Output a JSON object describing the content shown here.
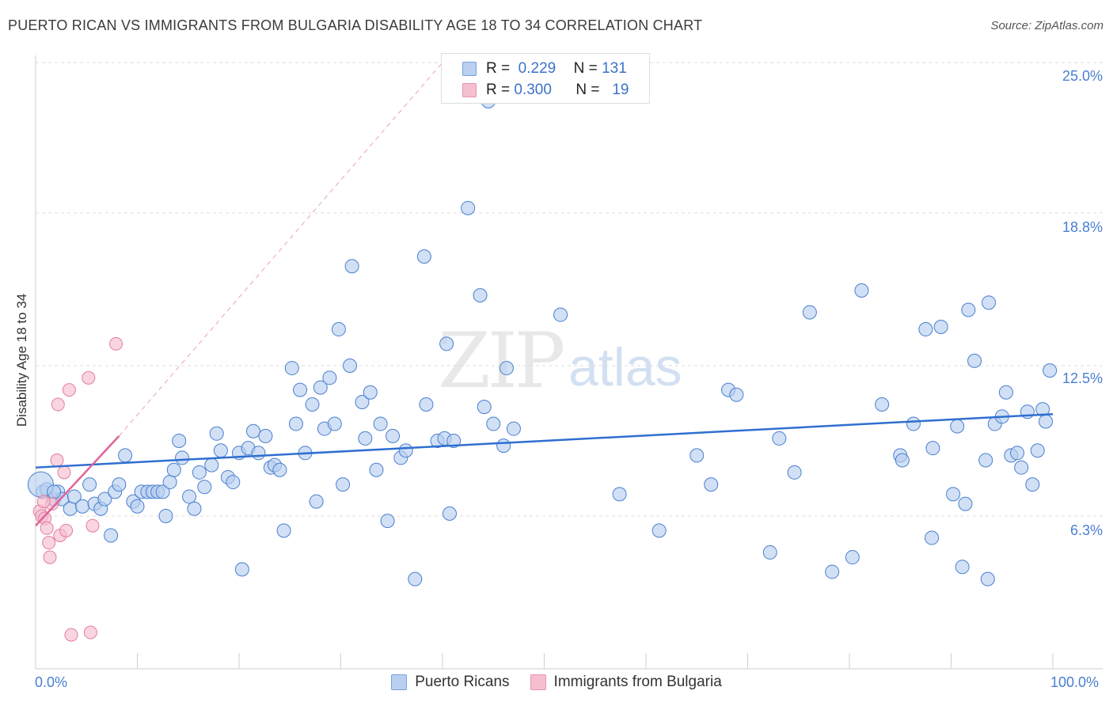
{
  "title": "PUERTO RICAN VS IMMIGRANTS FROM BULGARIA DISABILITY AGE 18 TO 34 CORRELATION CHART",
  "source": "Source: ZipAtlas.com",
  "watermark": {
    "a": "ZIP",
    "b": "atlas"
  },
  "colors": {
    "blue": "#4a7fd0",
    "blue_fill": "#b9d0f0",
    "pink": "#e27ca0",
    "pink_fill": "#f6bfd0",
    "blue_line": "#2f6fd0",
    "pink_line": "#e0639a"
  },
  "legend": {
    "r1_label": "R =",
    "r1_value": "0.229",
    "n1_label": "N =",
    "n1_value": "131",
    "r2_label": "R =",
    "r2_value": "0.300",
    "n2_label": "N =",
    "n2_value": "19"
  },
  "series_names": {
    "a": "Puerto Ricans",
    "b": "Immigrants from Bulgaria"
  },
  "chart_data": {
    "type": "scatter",
    "title": "PUERTO RICAN VS IMMIGRANTS FROM BULGARIA DISABILITY AGE 18 TO 34 CORRELATION CHART",
    "xlabel": "",
    "ylabel": "Disability Age 18 to 34",
    "xlim": [
      0,
      100
    ],
    "ylim": [
      0,
      25.5
    ],
    "x_tick_labels": [
      "0.0%",
      "100.0%"
    ],
    "y_ticks": [
      6.3,
      12.5,
      18.8,
      25.0
    ],
    "y_tick_labels": [
      "6.3%",
      "12.5%",
      "18.8%",
      "25.0%"
    ],
    "legend_position": "top-center",
    "grid": true,
    "series": [
      {
        "name": "Puerto Ricans",
        "trend": {
          "x": [
            0,
            100
          ],
          "y": [
            8.3,
            10.5
          ]
        },
        "points": [
          [
            0.7,
            7.3,
            1
          ],
          [
            1.1,
            7.4,
            1
          ],
          [
            1.8,
            7.0,
            1
          ],
          [
            2.2,
            7.3,
            1
          ],
          [
            2.6,
            7.0,
            1
          ],
          [
            3.4,
            6.6,
            1
          ],
          [
            3.8,
            7.1,
            1
          ],
          [
            4.6,
            6.7,
            1
          ],
          [
            5.3,
            7.6,
            1
          ],
          [
            5.8,
            6.8,
            1
          ],
          [
            6.4,
            6.6,
            1
          ],
          [
            6.8,
            7.0,
            1
          ],
          [
            7.4,
            5.5,
            1
          ],
          [
            7.8,
            7.3,
            1
          ],
          [
            8.2,
            7.6,
            1
          ],
          [
            8.8,
            8.8,
            1
          ],
          [
            9.6,
            6.9,
            1
          ],
          [
            10.0,
            6.7,
            1
          ],
          [
            10.4,
            7.3,
            1
          ],
          [
            11.0,
            7.3,
            1
          ],
          [
            11.5,
            7.3,
            1
          ],
          [
            12.0,
            7.3,
            1
          ],
          [
            12.5,
            7.3,
            1
          ],
          [
            12.8,
            6.3,
            1
          ],
          [
            13.2,
            7.7,
            1
          ],
          [
            13.6,
            8.2,
            1
          ],
          [
            14.1,
            9.4,
            1
          ],
          [
            14.4,
            8.7,
            1
          ],
          [
            15.1,
            7.1,
            1
          ],
          [
            15.6,
            6.6,
            1
          ],
          [
            16.1,
            8.1,
            1
          ],
          [
            16.6,
            7.5,
            1
          ],
          [
            17.3,
            8.4,
            1
          ],
          [
            17.8,
            9.7,
            1
          ],
          [
            18.2,
            9.0,
            1
          ],
          [
            18.9,
            7.9,
            1
          ],
          [
            19.4,
            7.7,
            1
          ],
          [
            20.0,
            8.9,
            1
          ],
          [
            20.3,
            4.1,
            1
          ],
          [
            20.9,
            9.1,
            1
          ],
          [
            21.4,
            9.8,
            1
          ],
          [
            21.9,
            8.9,
            1
          ],
          [
            22.6,
            9.6,
            1
          ],
          [
            23.1,
            8.3,
            1
          ],
          [
            23.5,
            8.4,
            1
          ],
          [
            24.0,
            8.2,
            1
          ],
          [
            24.4,
            5.7,
            1
          ],
          [
            25.2,
            12.4,
            1
          ],
          [
            25.6,
            10.1,
            1
          ],
          [
            26.0,
            11.5,
            1
          ],
          [
            26.5,
            8.9,
            1
          ],
          [
            27.2,
            10.9,
            1
          ],
          [
            27.6,
            6.9,
            1
          ],
          [
            28.0,
            11.6,
            1
          ],
          [
            28.4,
            9.9,
            1
          ],
          [
            28.9,
            12.0,
            1
          ],
          [
            29.4,
            10.1,
            1
          ],
          [
            29.8,
            14.0,
            1
          ],
          [
            30.2,
            7.6,
            1
          ],
          [
            30.9,
            12.5,
            1
          ],
          [
            31.1,
            16.6,
            1
          ],
          [
            32.1,
            11.0,
            1
          ],
          [
            32.4,
            9.5,
            1
          ],
          [
            32.9,
            11.4,
            1
          ],
          [
            33.5,
            8.2,
            1
          ],
          [
            33.9,
            10.1,
            1
          ],
          [
            34.6,
            6.1,
            1
          ],
          [
            35.1,
            9.6,
            1
          ],
          [
            35.9,
            8.7,
            1
          ],
          [
            36.4,
            9.0,
            1
          ],
          [
            37.3,
            3.7,
            1
          ],
          [
            38.2,
            17.0,
            1
          ],
          [
            38.4,
            10.9,
            1
          ],
          [
            39.5,
            9.4,
            1
          ],
          [
            40.2,
            9.5,
            1
          ],
          [
            40.4,
            13.4,
            1
          ],
          [
            40.7,
            6.4,
            1
          ],
          [
            41.1,
            9.4,
            1
          ],
          [
            42.5,
            19.0,
            1
          ],
          [
            43.7,
            15.4,
            1
          ],
          [
            44.1,
            10.8,
            1
          ],
          [
            44.5,
            23.4,
            1
          ],
          [
            45.0,
            10.1,
            1
          ],
          [
            46.0,
            9.2,
            1
          ],
          [
            46.3,
            12.4,
            1
          ],
          [
            47.0,
            9.9,
            1
          ],
          [
            51.6,
            14.6,
            1
          ],
          [
            57.4,
            7.2,
            1
          ],
          [
            61.3,
            5.7,
            1
          ],
          [
            65.0,
            8.8,
            1
          ],
          [
            66.4,
            7.6,
            1
          ],
          [
            68.1,
            11.5,
            1
          ],
          [
            68.9,
            11.3,
            1
          ],
          [
            72.2,
            4.8,
            1
          ],
          [
            73.1,
            9.5,
            1
          ],
          [
            74.6,
            8.1,
            1
          ],
          [
            76.1,
            14.7,
            1
          ],
          [
            78.3,
            4.0,
            1
          ],
          [
            80.3,
            4.6,
            1
          ],
          [
            81.2,
            15.6,
            1
          ],
          [
            83.2,
            10.9,
            1
          ],
          [
            85.0,
            8.8,
            1
          ],
          [
            85.2,
            8.6,
            1
          ],
          [
            86.3,
            10.1,
            1
          ],
          [
            87.5,
            14.0,
            1
          ],
          [
            88.1,
            5.4,
            1
          ],
          [
            88.2,
            9.1,
            1
          ],
          [
            89.0,
            14.1,
            1
          ],
          [
            90.2,
            7.2,
            1
          ],
          [
            90.6,
            10.0,
            1
          ],
          [
            91.1,
            4.2,
            1
          ],
          [
            91.4,
            6.8,
            1
          ],
          [
            91.7,
            14.8,
            1
          ],
          [
            92.3,
            12.7,
            1
          ],
          [
            93.4,
            8.6,
            1
          ],
          [
            93.6,
            3.7,
            1
          ],
          [
            93.7,
            15.1,
            1
          ],
          [
            94.3,
            10.1,
            1
          ],
          [
            95.0,
            10.4,
            1
          ],
          [
            95.4,
            11.4,
            1
          ],
          [
            95.9,
            8.8,
            1
          ],
          [
            96.5,
            8.9,
            1
          ],
          [
            96.9,
            8.3,
            1
          ],
          [
            97.5,
            10.6,
            1
          ],
          [
            98.0,
            7.6,
            1
          ],
          [
            98.5,
            9.0,
            1
          ],
          [
            99.0,
            10.7,
            1
          ],
          [
            99.3,
            10.2,
            1
          ],
          [
            99.7,
            12.3,
            1
          ],
          [
            0.5,
            7.6,
            2
          ],
          [
            1.8,
            7.3,
            1
          ]
        ]
      },
      {
        "name": "Immigrants from Bulgaria",
        "trend": {
          "x": [
            0,
            8.2
          ],
          "y": [
            5.9,
            9.6
          ]
        },
        "trend_ext": {
          "x": [
            8.2,
            40.0
          ],
          "y": [
            9.6,
            25.0
          ]
        },
        "points": [
          [
            0.4,
            6.5
          ],
          [
            0.6,
            6.3
          ],
          [
            0.9,
            6.2
          ],
          [
            1.1,
            5.8
          ],
          [
            1.3,
            5.2
          ],
          [
            1.4,
            4.6
          ],
          [
            1.6,
            6.8
          ],
          [
            2.1,
            8.6
          ],
          [
            2.2,
            10.9
          ],
          [
            2.4,
            5.5
          ],
          [
            2.8,
            8.1
          ],
          [
            3.0,
            5.7
          ],
          [
            3.3,
            11.5
          ],
          [
            3.5,
            1.4
          ],
          [
            5.2,
            12.0
          ],
          [
            5.4,
            1.5
          ],
          [
            5.6,
            5.9
          ],
          [
            7.9,
            13.4
          ],
          [
            0.8,
            6.9
          ]
        ]
      }
    ]
  }
}
